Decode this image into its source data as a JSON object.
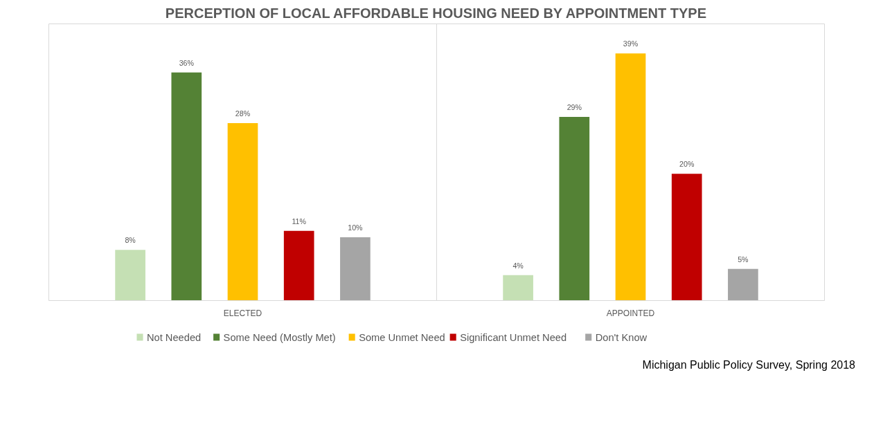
{
  "chart_data": {
    "type": "bar",
    "title": "PERCEPTION OF LOCAL AFFORDABLE HOUSING NEED BY APPOINTMENT TYPE",
    "categories": [
      "ELECTED",
      "APPOINTED"
    ],
    "series": [
      {
        "name": "Not Needed",
        "color": "#c5e0b4",
        "values": [
          8,
          4
        ],
        "value_labels": [
          "8%",
          "4%"
        ]
      },
      {
        "name": "Some Need (Mostly Met)",
        "color": "#548235",
        "values": [
          36,
          29
        ],
        "value_labels": [
          "36%",
          "29%"
        ]
      },
      {
        "name": "Some Unmet Need",
        "color": "#ffc000",
        "values": [
          28,
          39
        ],
        "value_labels": [
          "28%",
          "39%"
        ]
      },
      {
        "name": "Significant Unmet Need",
        "color": "#c00000",
        "values": [
          11,
          20
        ],
        "value_labels": [
          "11%",
          "20%"
        ]
      },
      {
        "name": "Don't Know",
        "color": "#a5a5a5",
        "values": [
          10,
          5
        ],
        "value_labels": [
          "10%",
          "5%"
        ]
      }
    ],
    "legend": "bottom",
    "grid": false,
    "annotations": [
      "Michigan Public Policy Survey, Spring 2018"
    ]
  }
}
